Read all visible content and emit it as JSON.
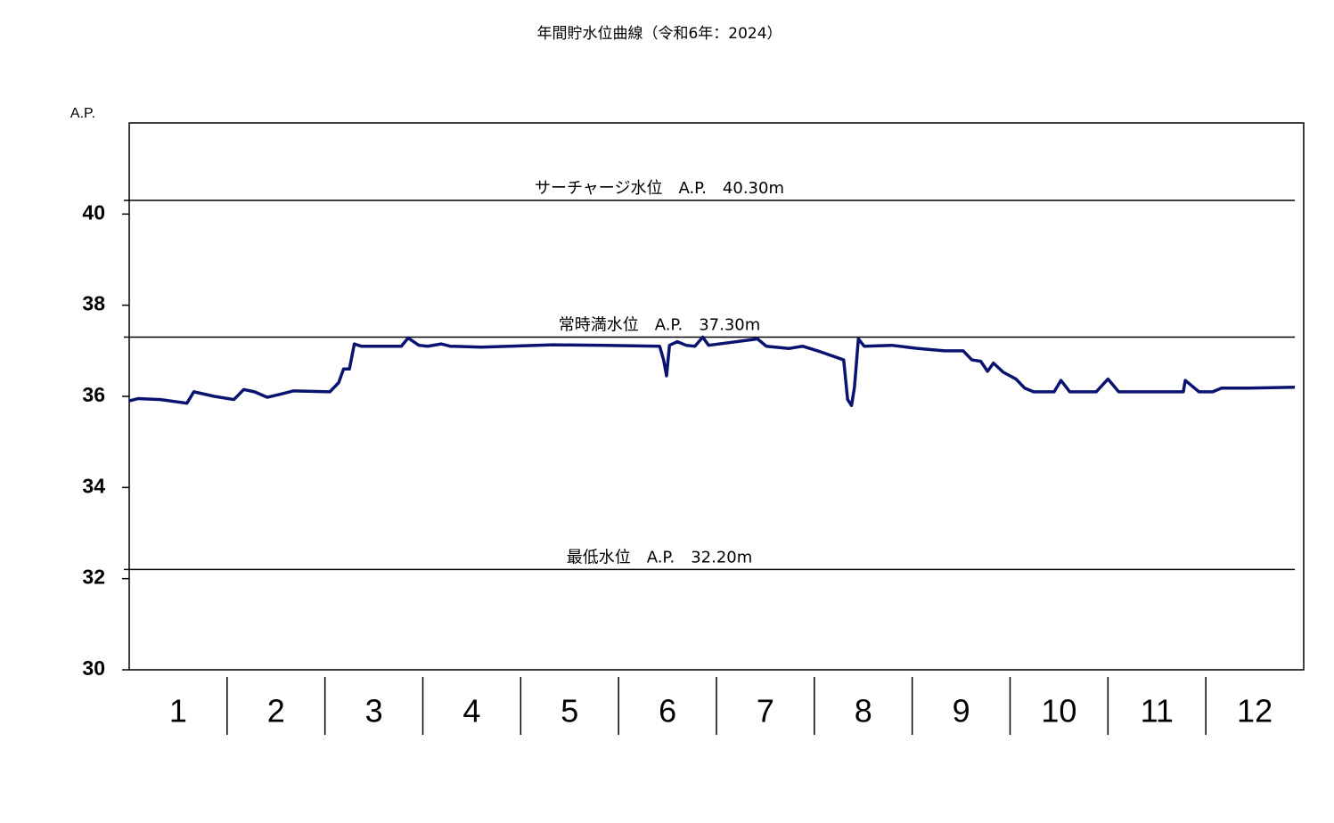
{
  "chart_data": {
    "type": "line",
    "title": "年間貯水位曲線（令和6年：2024）",
    "y_label": "A.P.",
    "ylim": [
      30,
      42
    ],
    "yticks": [
      30,
      32,
      34,
      36,
      38,
      40
    ],
    "xlim": [
      0,
      12
    ],
    "xticks": [
      {
        "value": 0.5,
        "label": "1"
      },
      {
        "value": 1.5,
        "label": "2"
      },
      {
        "value": 2.5,
        "label": "3"
      },
      {
        "value": 3.5,
        "label": "4"
      },
      {
        "value": 4.5,
        "label": "5"
      },
      {
        "value": 5.5,
        "label": "6"
      },
      {
        "value": 6.5,
        "label": "7"
      },
      {
        "value": 7.5,
        "label": "8"
      },
      {
        "value": 8.5,
        "label": "9"
      },
      {
        "value": 9.5,
        "label": "10"
      },
      {
        "value": 10.5,
        "label": "11"
      },
      {
        "value": 11.5,
        "label": "12"
      }
    ],
    "reference_lines": [
      {
        "value": 40.3,
        "label": "サーチャージ水位　A.P.　40.30m"
      },
      {
        "value": 37.3,
        "label": "常時満水位　A.P.　37.30m"
      },
      {
        "value": 32.2,
        "label": "最低水位　A.P.　32.20m"
      }
    ],
    "series": [
      {
        "color": "#0a1470",
        "x": [
          0,
          0.09,
          0.32,
          0.59,
          0.66,
          0.87,
          1.07,
          1.17,
          1.28,
          1.41,
          1.55,
          1.68,
          2.05,
          2.14,
          2.19,
          2.25,
          2.3,
          2.37,
          2.78,
          2.85,
          2.96,
          3.05,
          3.19,
          3.28,
          3.6,
          4.33,
          4.87,
          5.42,
          5.46,
          5.49,
          5.52,
          5.6,
          5.69,
          5.78,
          5.86,
          5.92,
          6.42,
          6.51,
          6.74,
          6.88,
          7.06,
          7.3,
          7.34,
          7.38,
          7.41,
          7.45,
          7.51,
          7.79,
          8.06,
          8.33,
          8.52,
          8.61,
          8.7,
          8.77,
          8.83,
          8.93,
          9.06,
          9.15,
          9.24,
          9.45,
          9.52,
          9.61,
          9.88,
          10.0,
          10.11,
          10.77,
          10.79,
          10.93,
          11.07,
          11.16,
          11.43,
          11.91
        ],
        "values": [
          35.9,
          35.95,
          35.93,
          35.85,
          36.1,
          36.0,
          35.93,
          36.15,
          36.1,
          35.98,
          36.05,
          36.12,
          36.1,
          36.3,
          36.6,
          36.6,
          37.15,
          37.1,
          37.1,
          37.28,
          37.12,
          37.1,
          37.15,
          37.1,
          37.08,
          37.13,
          37.12,
          37.1,
          36.8,
          36.45,
          37.12,
          37.2,
          37.12,
          37.1,
          37.3,
          37.12,
          37.26,
          37.1,
          37.05,
          37.1,
          36.98,
          36.8,
          35.93,
          35.8,
          36.2,
          37.26,
          37.1,
          37.12,
          37.05,
          37.0,
          37.0,
          36.8,
          36.77,
          36.55,
          36.73,
          36.53,
          36.38,
          36.18,
          36.1,
          36.1,
          36.35,
          36.1,
          36.1,
          36.38,
          36.1,
          36.1,
          36.35,
          36.1,
          36.1,
          36.18,
          36.18,
          36.2
        ]
      }
    ]
  }
}
